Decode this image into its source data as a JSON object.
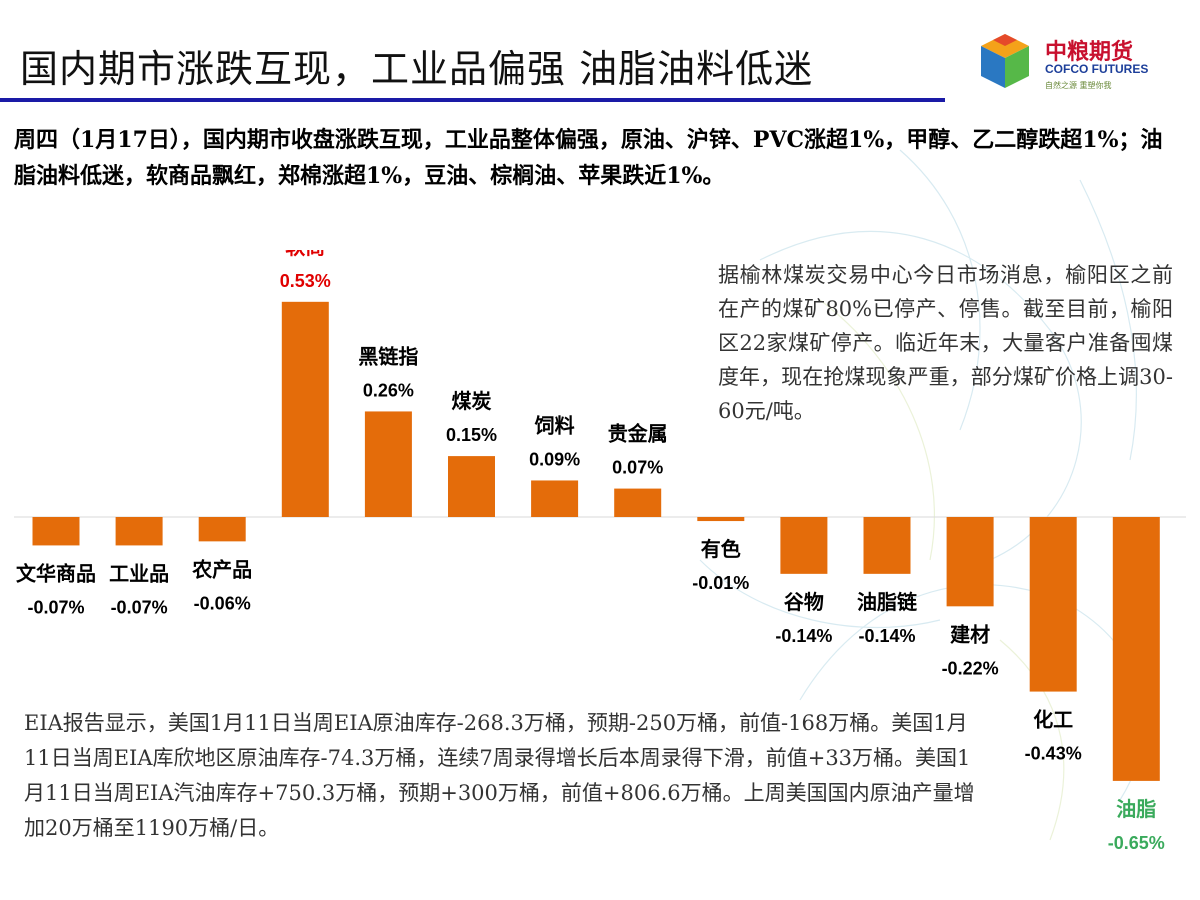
{
  "header": {
    "title": "国内期市涨跌互现，工业品偏强 油脂油料低迷",
    "logo_cn": "中粮期货",
    "logo_en": "COFCO FUTURES",
    "logo_slogan": "自然之源 重塑你我"
  },
  "summary": "周四（1月17日），国内期市收盘涨跌互现，工业品整体偏强，原油、沪锌、PVC涨超1%，甲醇、乙二醇跌超1%；油脂油料低迷，软商品飘红，郑棉涨超1%，豆油、棕榈油、苹果跌近1%。",
  "note_top": "据榆林煤炭交易中心今日市场消息，榆阳区之前在产的煤矿80%已停产、停售。截至目前，榆阳区22家煤矿停产。临近年末，大量客户准备囤煤度年，现在抢煤现象严重，部分煤矿价格上调30-60元/吨。",
  "note_bottom": "EIA报告显示，美国1月11日当周EIA原油库存-268.3万桶，预期-250万桶，前值-168万桶。美国1月11日当周EIA库欣地区原油库存-74.3万桶，连续7周录得增长后本周录得下滑，前值+33万桶。美国1月11日当周EIA汽油库存+750.3万桶，预期+300万桶，前值+806.6万桶。上周美国国内原油产量增加20万桶至1190万桶/日。",
  "colors": {
    "bar": "#e46c0a",
    "highlight_max": "#e00000",
    "highlight_min": "#3aaa5c",
    "label": "#000000",
    "title_rule": "#1a1aa6"
  },
  "chart_data": {
    "type": "bar",
    "title": "",
    "xlabel": "",
    "ylabel": "",
    "categories": [
      "文华商品",
      "工业品",
      "农产品",
      "软商",
      "黑链指",
      "煤炭",
      "饲料",
      "贵金属",
      "有色",
      "谷物",
      "油脂链",
      "建材",
      "化工",
      "油脂"
    ],
    "values": [
      -0.07,
      -0.07,
      -0.06,
      0.53,
      0.26,
      0.15,
      0.09,
      0.07,
      -0.01,
      -0.14,
      -0.14,
      -0.22,
      -0.43,
      -0.65
    ],
    "value_labels": [
      "-0.07%",
      "-0.07%",
      "-0.06%",
      "0.53%",
      "0.26%",
      "0.15%",
      "0.09%",
      "0.07%",
      "-0.01%",
      "-0.14%",
      "-0.14%",
      "-0.22%",
      "-0.43%",
      "-0.65%"
    ],
    "ylim": [
      -0.65,
      0.53
    ],
    "grid": false,
    "legend": "none"
  }
}
